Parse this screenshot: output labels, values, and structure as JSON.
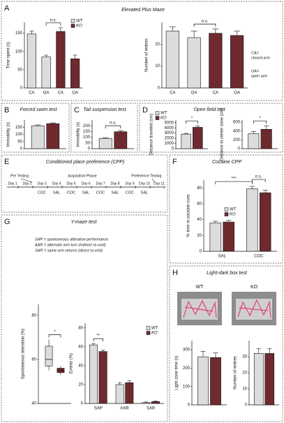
{
  "panel_labels": [
    "A",
    "B",
    "C",
    "D",
    "E",
    "F",
    "G",
    "H"
  ],
  "chart_data": [
    {
      "type": "bar",
      "title": "Elevated Plus Maze",
      "ylabel": "Time spent (s)",
      "categories": [
        "CA",
        "OA",
        "CA",
        "OA"
      ],
      "series": [
        {
          "name": "WT",
          "color": "#dcdcdc",
          "values": [
            148,
            85,
            null,
            null
          ],
          "errors": [
            8,
            5,
            null,
            null
          ]
        },
        {
          "name": "KO",
          "color": "#6e2a2f",
          "values": [
            null,
            null,
            155,
            80
          ],
          "errors": [
            null,
            null,
            10,
            10
          ]
        }
      ],
      "ylim": [
        0,
        180
      ],
      "yticks": [
        0,
        50,
        100,
        150
      ],
      "legend": true,
      "annotations": [
        "n.s."
      ]
    },
    {
      "type": "bar",
      "ylabel": "Number of entries",
      "categories": [
        "CA",
        "OA",
        "CA",
        "OA"
      ],
      "series": [
        {
          "name": "WT",
          "color": "#dcdcdc",
          "values": [
            26,
            23,
            null,
            null
          ],
          "errors": [
            2,
            3,
            null,
            null
          ]
        },
        {
          "name": "KO",
          "color": "#6e2a2f",
          "values": [
            null,
            null,
            25,
            24
          ],
          "errors": [
            null,
            null,
            2,
            2
          ]
        }
      ],
      "ylim": [
        0,
        30
      ],
      "yticks": [
        0,
        10,
        20
      ],
      "legend": false,
      "annotations": [
        "n.s."
      ],
      "notes": [
        "CA=",
        "closed arm",
        "OA=",
        "open arm"
      ]
    },
    {
      "type": "bar",
      "title": "Forced swim test",
      "ylabel": "Immobility (s)",
      "categories": [
        null
      ],
      "series": [
        {
          "name": "WT",
          "color": "#dcdcdc",
          "values": [
            160
          ],
          "errors": [
            6
          ]
        },
        {
          "name": "KO",
          "color": "#6e2a2f",
          "values": [
            175
          ],
          "errors": [
            5
          ]
        }
      ],
      "ylim": [
        0,
        200
      ],
      "yticks": [
        0,
        50,
        100,
        150
      ],
      "legend": false,
      "annotations": []
    },
    {
      "type": "bar",
      "title": "Tail suspension test",
      "ylabel": "Immobility (s)",
      "categories": [
        null
      ],
      "series": [
        {
          "name": "WT",
          "color": "#dcdcdc",
          "values": [
            90
          ],
          "errors": [
            5
          ]
        },
        {
          "name": "KO",
          "color": "#6e2a2f",
          "values": [
            148
          ],
          "errors": [
            10
          ]
        }
      ],
      "ylim": [
        0,
        250
      ],
      "yticks": [
        0,
        50,
        100,
        150,
        200
      ],
      "legend": false,
      "annotations": [
        "n.s."
      ]
    },
    {
      "type": "bar",
      "title": "Open field test",
      "ylabel": "Distance traveled (cm)",
      "categories": [
        null
      ],
      "series": [
        {
          "name": "WT",
          "color": "#dcdcdc",
          "values": [
            2800
          ],
          "errors": [
            150
          ]
        },
        {
          "name": "KO",
          "color": "#6e2a2f",
          "values": [
            4100
          ],
          "errors": [
            300
          ]
        }
      ],
      "ylim": [
        0,
        5500
      ],
      "yticks": [
        0,
        1000,
        2000,
        3000,
        4000,
        5000
      ],
      "legend": true,
      "annotations": [
        "*"
      ]
    },
    {
      "type": "bar",
      "ylabel": "Distance in center zone (cm)",
      "categories": [
        null
      ],
      "series": [
        {
          "name": "WT",
          "color": "#dcdcdc",
          "values": [
            340
          ],
          "errors": [
            50
          ]
        },
        {
          "name": "KO",
          "color": "#6e2a2f",
          "values": [
            440
          ],
          "errors": [
            80
          ]
        }
      ],
      "ylim": [
        0,
        650
      ],
      "yticks": [
        0,
        200,
        400,
        600
      ],
      "legend": false,
      "annotations": [
        "*"
      ]
    },
    {
      "type": "bar",
      "title": "Cocaine CPP",
      "ylabel": "% time in cocaine cues",
      "categories": [
        "SAL",
        "COC"
      ],
      "series": [
        {
          "name": "WT",
          "color": "#dcdcdc",
          "values": [
            36,
            79
          ],
          "errors": [
            2,
            3
          ]
        },
        {
          "name": "KO",
          "color": "#6e2a2f",
          "values": [
            37,
            74
          ],
          "errors": [
            2,
            3
          ]
        }
      ],
      "ylim": [
        0,
        90
      ],
      "yticks": [
        0,
        20,
        40,
        60,
        80
      ],
      "legend": true,
      "annotations": [
        "***",
        "n.s."
      ]
    },
    {
      "type": "box",
      "title": "Y-maze test",
      "ylabel": "Spontaneous alteration (%)",
      "categories": [
        null
      ],
      "series": [
        {
          "name": "WT",
          "color": "#dcdcdc",
          "min": 55,
          "q1": 57,
          "median": 60,
          "q3": 66,
          "max": 69
        },
        {
          "name": "KO",
          "color": "#6e2a2f",
          "min": 53,
          "q1": 54,
          "median": 55,
          "q3": 56,
          "max": 57
        }
      ],
      "ylim": [
        40,
        85
      ],
      "yticks": [
        40,
        60,
        80
      ],
      "legend": false,
      "annotations": [
        "*"
      ]
    },
    {
      "type": "bar",
      "ylabel": "Events (%)",
      "categories": [
        "SAP",
        "AAR",
        "SAR"
      ],
      "series": [
        {
          "name": "WT",
          "color": "#dcdcdc",
          "values": [
            62,
            20,
            1
          ],
          "errors": [
            1.5,
            2,
            0.5
          ]
        },
        {
          "name": "KO",
          "color": "#6e2a2f",
          "values": [
            55,
            22,
            2
          ],
          "errors": [
            1.5,
            2,
            0.5
          ]
        }
      ],
      "ylim": [
        0,
        85
      ],
      "yticks": [
        0,
        20,
        40,
        60,
        80
      ],
      "legend": true,
      "annotations": [
        "**"
      ]
    },
    {
      "type": "bar",
      "ylabel": "Light zone time (s)",
      "categories": [
        null
      ],
      "series": [
        {
          "name": "WT",
          "color": "#dcdcdc",
          "values": [
            262
          ],
          "errors": [
            30
          ]
        },
        {
          "name": "KO",
          "color": "#6e2a2f",
          "values": [
            258
          ],
          "errors": [
            25
          ]
        }
      ],
      "ylim": [
        0,
        350
      ],
      "yticks": [
        0,
        100,
        200,
        300
      ],
      "legend": false,
      "annotations": []
    },
    {
      "type": "bar",
      "ylabel": "Number of entries",
      "categories": [
        null
      ],
      "series": [
        {
          "name": "WT",
          "color": "#dcdcdc",
          "values": [
            32
          ],
          "errors": [
            3
          ]
        },
        {
          "name": "KO",
          "color": "#6e2a2f",
          "values": [
            32
          ],
          "errors": [
            3
          ]
        }
      ],
      "ylim": [
        0,
        40
      ],
      "yticks": [
        0,
        10,
        20,
        30
      ],
      "legend": false,
      "annotations": []
    }
  ],
  "cpp_timeline": {
    "title": "Conditioned place preference (CPP)",
    "days": [
      "Day 1",
      "Day 2",
      "Day 3",
      "Day 4",
      "Day 5",
      "Day 6",
      "Day 7",
      "Day 8",
      "Day 9",
      "Day 10",
      "Day 11"
    ],
    "phases": [
      "Pre Testing",
      "Acquisition Phase",
      "Preference Testing"
    ],
    "treatments": [
      "COC",
      "SAL",
      "COC",
      "SAL",
      "COC",
      "SAL",
      "COC",
      "SAL"
    ]
  },
  "y_maze_definitions": [
    "SAP = spontaneous alteration performance",
    "AAR = alternate arm turn (indirect re-visit)",
    "SAR = same arm returns (direct re-visit)"
  ],
  "light_dark": {
    "title": "Light-dark box test",
    "images": [
      "WT",
      "KO"
    ]
  }
}
